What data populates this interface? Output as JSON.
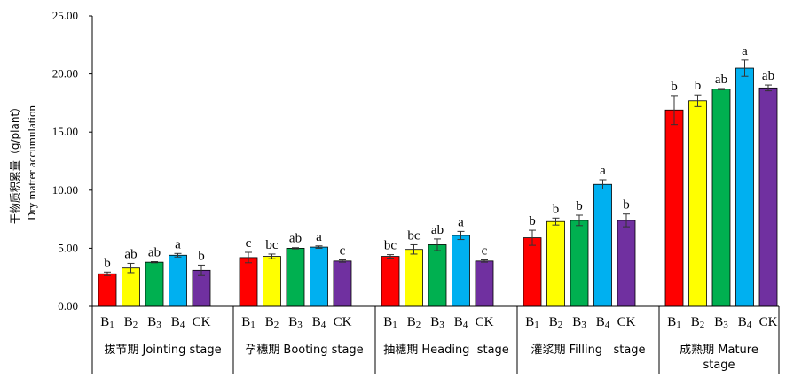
{
  "chart_data": {
    "type": "bar",
    "ylabel_cn": "干物质积累量（g/plant）",
    "ylabel_en": "Dry matter accumulation",
    "ylim": [
      0,
      25
    ],
    "yticks": [
      "0.00",
      "5.00",
      "10.00",
      "15.00",
      "20.00",
      "25.00"
    ],
    "grid": false,
    "treatments": [
      {
        "label": "B",
        "sub": "1",
        "color": "#ff0000"
      },
      {
        "label": "B",
        "sub": "2",
        "color": "#ffff00"
      },
      {
        "label": "B",
        "sub": "3",
        "color": "#00b050"
      },
      {
        "label": "B",
        "sub": "4",
        "color": "#00b0f0"
      },
      {
        "label": "CK",
        "sub": "",
        "color": "#7030a0"
      }
    ],
    "groups": [
      {
        "label_lines": [
          "拔节期 Jointing stage"
        ],
        "values": [
          2.8,
          3.3,
          3.8,
          4.4,
          3.1
        ],
        "errors": [
          0.15,
          0.4,
          0.05,
          0.15,
          0.45
        ],
        "letters": [
          "b",
          "ab",
          "ab",
          "a",
          "b"
        ]
      },
      {
        "label_lines": [
          "孕穗期 Booting stage"
        ],
        "values": [
          4.2,
          4.3,
          5.0,
          5.1,
          3.9
        ],
        "errors": [
          0.45,
          0.2,
          0.05,
          0.1,
          0.1
        ],
        "letters": [
          "c",
          "bc",
          "ab",
          "a",
          "c"
        ]
      },
      {
        "label_lines": [
          "抽穗期 Heading  stage"
        ],
        "values": [
          4.3,
          4.9,
          5.3,
          6.1,
          3.9
        ],
        "errors": [
          0.15,
          0.4,
          0.5,
          0.35,
          0.1
        ],
        "letters": [
          "bc",
          "bc",
          "ab",
          "a",
          "c"
        ]
      },
      {
        "label_lines": [
          "灌浆期 Filling   stage"
        ],
        "values": [
          5.9,
          7.3,
          7.4,
          10.5,
          7.4
        ],
        "errors": [
          0.65,
          0.3,
          0.45,
          0.4,
          0.55
        ],
        "letters": [
          "b",
          "b",
          "b",
          "a",
          "b"
        ]
      },
      {
        "label_lines": [
          "成熟期 Mature",
          "stage"
        ],
        "values": [
          16.9,
          17.7,
          18.7,
          20.5,
          18.8
        ],
        "errors": [
          1.25,
          0.5,
          0.05,
          0.7,
          0.25
        ],
        "letters": [
          "b",
          "b",
          "ab",
          "a",
          "ab"
        ]
      }
    ]
  }
}
